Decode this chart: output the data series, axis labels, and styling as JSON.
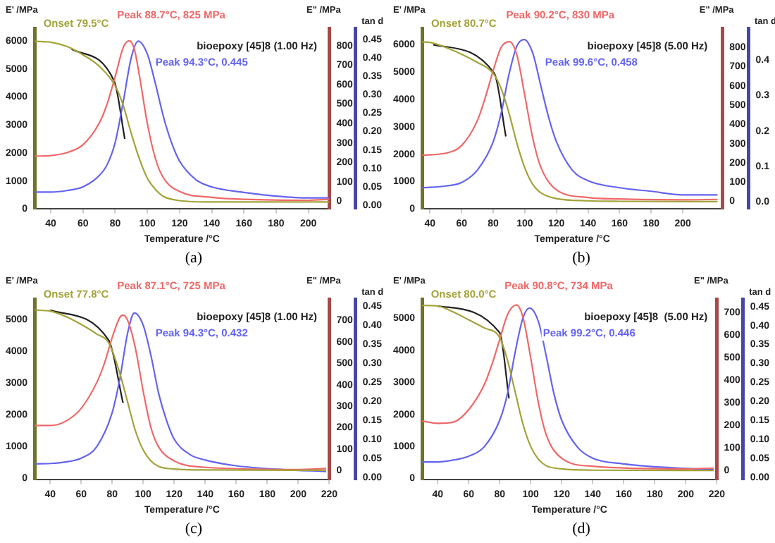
{
  "chart_data": [
    {
      "type": "line",
      "xlabel": "Temperature /°C",
      "ylabel": "E' /MPa",
      "y2label": "E\" /MPa",
      "y3label": "tan d",
      "marker": "none",
      "grid": false,
      "xlim": [
        30,
        213
      ],
      "xticks": [
        40,
        60,
        80,
        100,
        120,
        140,
        160,
        180,
        200
      ],
      "ylim": [
        0,
        6450
      ],
      "yticks": [
        0,
        1000,
        2000,
        3000,
        4000,
        5000,
        6000
      ],
      "y2lim": [
        -40,
        890
      ],
      "y2ticks": [
        0,
        100,
        200,
        300,
        400,
        500,
        600,
        700,
        800
      ],
      "y3lim": [
        -0.01,
        0.48
      ],
      "y3ticks": [
        {
          "value": 0,
          "label": "0.00"
        },
        {
          "value": 0.05,
          "label": "0.05"
        },
        {
          "value": 0.1,
          "label": "0.10"
        },
        {
          "value": 0.15,
          "label": "0.15"
        },
        {
          "value": 0.2,
          "label": "0.20"
        },
        {
          "value": 0.25,
          "label": "0.25"
        },
        {
          "value": 0.3,
          "label": "0.30"
        },
        {
          "value": 0.35,
          "label": "0.35"
        },
        {
          "value": 0.4,
          "label": "0.40"
        },
        {
          "value": 0.45,
          "label": "0.45"
        }
      ],
      "annotations": [
        "Onset 79.5°C",
        "Peak 88.7°C, 825 MPa",
        "Peak 94.3°C, 0.445",
        "bioepoxy [45]8 (1.00 Hz)",
        "(a)"
      ],
      "series": [
        {
          "color": "#a3a33a",
          "x": [
            30,
            40,
            50,
            60,
            70,
            80,
            85,
            90,
            95,
            100,
            105,
            110,
            120,
            140,
            160,
            200,
            213
          ],
          "values": [
            5980,
            5950,
            5800,
            5500,
            5100,
            4400,
            3700,
            2700,
            1800,
            1100,
            700,
            450,
            300,
            250,
            250,
            250,
            250
          ]
        },
        {
          "color": "#f06868",
          "axis": "y2",
          "x": [
            30,
            40,
            50,
            60,
            70,
            75,
            80,
            85,
            88.7,
            92,
            95,
            100,
            105,
            110,
            120,
            140,
            160,
            200,
            213
          ],
          "values": [
            232,
            235,
            250,
            290,
            400,
            500,
            640,
            790,
            825,
            780,
            650,
            400,
            220,
            120,
            50,
            20,
            10,
            5,
            10
          ]
        },
        {
          "color": "#6464f0",
          "axis": "y3",
          "x": [
            30,
            40,
            50,
            60,
            70,
            75,
            80,
            85,
            90,
            94.3,
            100,
            105,
            110,
            115,
            120,
            130,
            140,
            160,
            180,
            200,
            213
          ],
          "values": [
            0.036,
            0.036,
            0.04,
            0.05,
            0.08,
            0.11,
            0.17,
            0.28,
            0.4,
            0.445,
            0.41,
            0.33,
            0.24,
            0.17,
            0.12,
            0.07,
            0.05,
            0.035,
            0.025,
            0.02,
            0.02
          ]
        },
        {
          "color": "#222222",
          "x": [
            53,
            79.5,
            86
          ],
          "values": [
            5700,
            4550,
            2500
          ]
        }
      ]
    },
    {
      "type": "line",
      "xlabel": "Temperature /°C",
      "ylabel": "E' /MPa",
      "y2label": "E\" /MPa",
      "y3label": "tan d",
      "marker": "none",
      "grid": false,
      "xlim": [
        35,
        225
      ],
      "xticks": [
        40,
        60,
        80,
        100,
        120,
        140,
        160,
        180,
        200
      ],
      "ylim": [
        0,
        6600
      ],
      "yticks": [
        0,
        1000,
        2000,
        3000,
        4000,
        5000,
        6000
      ],
      "y2lim": [
        -40,
        900
      ],
      "y2ticks": [
        0,
        100,
        200,
        300,
        400,
        500,
        600,
        700,
        800
      ],
      "y3lim": [
        -0.02,
        0.49
      ],
      "y3ticks": [
        {
          "value": 0,
          "label": "0.0"
        },
        {
          "value": 0.1,
          "label": "0.1"
        },
        {
          "value": 0.2,
          "label": "0.2"
        },
        {
          "value": 0.3,
          "label": "0.3"
        },
        {
          "value": 0.4,
          "label": "0.4"
        }
      ],
      "annotations": [
        "Onset 80.7°C",
        "Peak 90.2°C, 830 MPa",
        "Peak 99.6°C, 0.458",
        "bioepoxy [45]8 (5.00 Hz)",
        "(b)"
      ],
      "series": [
        {
          "color": "#a3a33a",
          "x": [
            35,
            40,
            50,
            60,
            70,
            80,
            85,
            90,
            95,
            100,
            105,
            110,
            120,
            140,
            160,
            200,
            222
          ],
          "values": [
            6100,
            6080,
            5900,
            5650,
            5350,
            4950,
            4400,
            3500,
            2400,
            1500,
            900,
            600,
            380,
            300,
            280,
            270,
            270
          ]
        },
        {
          "color": "#f06868",
          "axis": "y2",
          "x": [
            35,
            50,
            60,
            70,
            75,
            80,
            85,
            90.2,
            95,
            100,
            105,
            110,
            120,
            140,
            160,
            200,
            222
          ],
          "values": [
            240,
            250,
            290,
            420,
            540,
            680,
            800,
            830,
            760,
            550,
            330,
            180,
            60,
            20,
            12,
            8,
            10
          ]
        },
        {
          "color": "#6464f0",
          "axis": "y3",
          "x": [
            35,
            50,
            60,
            70,
            80,
            85,
            90,
            95,
            99.6,
            105,
            110,
            115,
            120,
            130,
            140,
            160,
            180,
            200,
            222
          ],
          "values": [
            0.04,
            0.045,
            0.055,
            0.09,
            0.17,
            0.25,
            0.36,
            0.44,
            0.458,
            0.42,
            0.33,
            0.24,
            0.17,
            0.09,
            0.06,
            0.04,
            0.03,
            0.02,
            0.02
          ]
        },
        {
          "color": "#222222",
          "x": [
            42,
            80.7,
            88
          ],
          "values": [
            6000,
            4950,
            2650
          ]
        }
      ]
    },
    {
      "type": "line",
      "xlabel": "Temperature /°C",
      "ylabel": "E' /MPa",
      "y2label": "E\" /MPa",
      "y3label": "tan d",
      "marker": "none",
      "grid": false,
      "xlim": [
        30,
        220
      ],
      "xticks": [
        40,
        60,
        80,
        100,
        120,
        140,
        160,
        180,
        200,
        220
      ],
      "ylim": [
        -40,
        5650
      ],
      "yticks": [
        0,
        1000,
        2000,
        3000,
        4000,
        5000
      ],
      "y2lim": [
        -43,
        800
      ],
      "y2ticks": [
        0,
        100,
        200,
        300,
        400,
        500,
        600,
        700
      ],
      "y3lim": [
        -0.007,
        0.469
      ],
      "y3ticks": [
        {
          "value": 0,
          "label": "0.00"
        },
        {
          "value": 0.05,
          "label": "0.05"
        },
        {
          "value": 0.1,
          "label": "0.10"
        },
        {
          "value": 0.15,
          "label": "0.15"
        },
        {
          "value": 0.2,
          "label": "0.20"
        },
        {
          "value": 0.25,
          "label": "0.25"
        },
        {
          "value": 0.3,
          "label": "0.30"
        },
        {
          "value": 0.35,
          "label": "0.35"
        },
        {
          "value": 0.4,
          "label": "0.40"
        },
        {
          "value": 0.45,
          "label": "0.45"
        }
      ],
      "annotations": [
        "Onset 77.8°C",
        "Peak 87.1°C, 725 MPa",
        "Peak 94.3°C, 0.432",
        "bioepoxy [45]8 (1.00 Hz)",
        "(c)"
      ],
      "series": [
        {
          "color": "#a3a33a",
          "x": [
            30,
            40,
            50,
            60,
            70,
            78,
            85,
            90,
            95,
            100,
            105,
            110,
            120,
            140,
            200,
            218
          ],
          "values": [
            5300,
            5270,
            5100,
            4850,
            4550,
            4250,
            3300,
            2400,
            1500,
            900,
            550,
            380,
            300,
            270,
            260,
            260
          ]
        },
        {
          "color": "#f06868",
          "axis": "y2",
          "x": [
            30,
            40,
            50,
            60,
            70,
            75,
            80,
            85,
            87.1,
            90,
            95,
            100,
            105,
            110,
            120,
            140,
            200,
            218
          ],
          "values": [
            210,
            210,
            230,
            290,
            410,
            500,
            620,
            715,
            725,
            700,
            570,
            370,
            200,
            110,
            45,
            15,
            5,
            10
          ]
        },
        {
          "color": "#6464f0",
          "axis": "y3",
          "x": [
            30,
            40,
            50,
            60,
            70,
            80,
            85,
            90,
            94.3,
            100,
            105,
            110,
            115,
            120,
            130,
            140,
            160,
            190,
            218
          ],
          "values": [
            0.035,
            0.036,
            0.04,
            0.05,
            0.08,
            0.17,
            0.26,
            0.38,
            0.432,
            0.4,
            0.32,
            0.22,
            0.15,
            0.1,
            0.06,
            0.045,
            0.03,
            0.02,
            0.015
          ]
        },
        {
          "color": "#222222",
          "x": [
            40,
            77.8,
            87
          ],
          "values": [
            5300,
            4350,
            2380
          ]
        }
      ]
    },
    {
      "type": "line",
      "xlabel": "Temperature /°C",
      "ylabel": "E' /MPa",
      "y2label": "E\" /MPa",
      "y3label": "tan d",
      "marker": "none",
      "grid": false,
      "xlim": [
        30,
        220
      ],
      "xticks": [
        40,
        60,
        80,
        100,
        120,
        140,
        160,
        180,
        200,
        220
      ],
      "ylim": [
        -40,
        5600
      ],
      "yticks": [
        0,
        1000,
        2000,
        3000,
        4000,
        5000
      ],
      "y2lim": [
        -40,
        760
      ],
      "y2ticks": [
        0,
        100,
        200,
        300,
        400,
        500,
        600,
        700
      ],
      "y3lim": [
        -0.007,
        0.47
      ],
      "y3ticks": [
        {
          "value": 0,
          "label": "0.00"
        },
        {
          "value": 0.05,
          "label": "0.05"
        },
        {
          "value": 0.1,
          "label": "0.10"
        },
        {
          "value": 0.15,
          "label": "0.15"
        },
        {
          "value": 0.2,
          "label": "0.20"
        },
        {
          "value": 0.25,
          "label": "0.25"
        },
        {
          "value": 0.3,
          "label": "0.30"
        },
        {
          "value": 0.35,
          "label": "0.35"
        },
        {
          "value": 0.4,
          "label": "0.40"
        },
        {
          "value": 0.45,
          "label": "0.45"
        }
      ],
      "annotations": [
        "Onset 80.0°C",
        "Peak 90.8°C, 734 MPa",
        "Peak 99.2°C, 0.446",
        "bioepoxy [45]8  (5.00 Hz)",
        "(d)"
      ],
      "series": [
        {
          "color": "#a3a33a",
          "x": [
            30,
            40,
            50,
            60,
            70,
            80,
            85,
            90,
            95,
            100,
            105,
            110,
            120,
            140,
            200,
            218
          ],
          "values": [
            5400,
            5380,
            5200,
            4950,
            4700,
            4400,
            3700,
            2700,
            1700,
            1000,
            600,
            400,
            300,
            260,
            250,
            250
          ]
        },
        {
          "color": "#f06868",
          "axis": "y2",
          "x": [
            30,
            40,
            50,
            60,
            70,
            75,
            80,
            85,
            90.8,
            95,
            100,
            105,
            110,
            120,
            140,
            200,
            218
          ],
          "values": [
            220,
            210,
            215,
            270,
            380,
            470,
            580,
            690,
            734,
            680,
            500,
            300,
            160,
            55,
            20,
            8,
            12
          ]
        },
        {
          "color": "#6464f0",
          "axis": "y3",
          "x": [
            30,
            40,
            50,
            60,
            70,
            80,
            85,
            90,
            95,
            99.2,
            105,
            110,
            115,
            120,
            130,
            140,
            160,
            190,
            218
          ],
          "values": [
            0.04,
            0.04,
            0.045,
            0.055,
            0.08,
            0.15,
            0.22,
            0.33,
            0.42,
            0.446,
            0.41,
            0.32,
            0.22,
            0.15,
            0.08,
            0.05,
            0.035,
            0.025,
            0.02
          ]
        },
        {
          "color": "#222222",
          "x": [
            40,
            80,
            86
          ],
          "values": [
            5380,
            4550,
            2500
          ]
        }
      ]
    }
  ]
}
